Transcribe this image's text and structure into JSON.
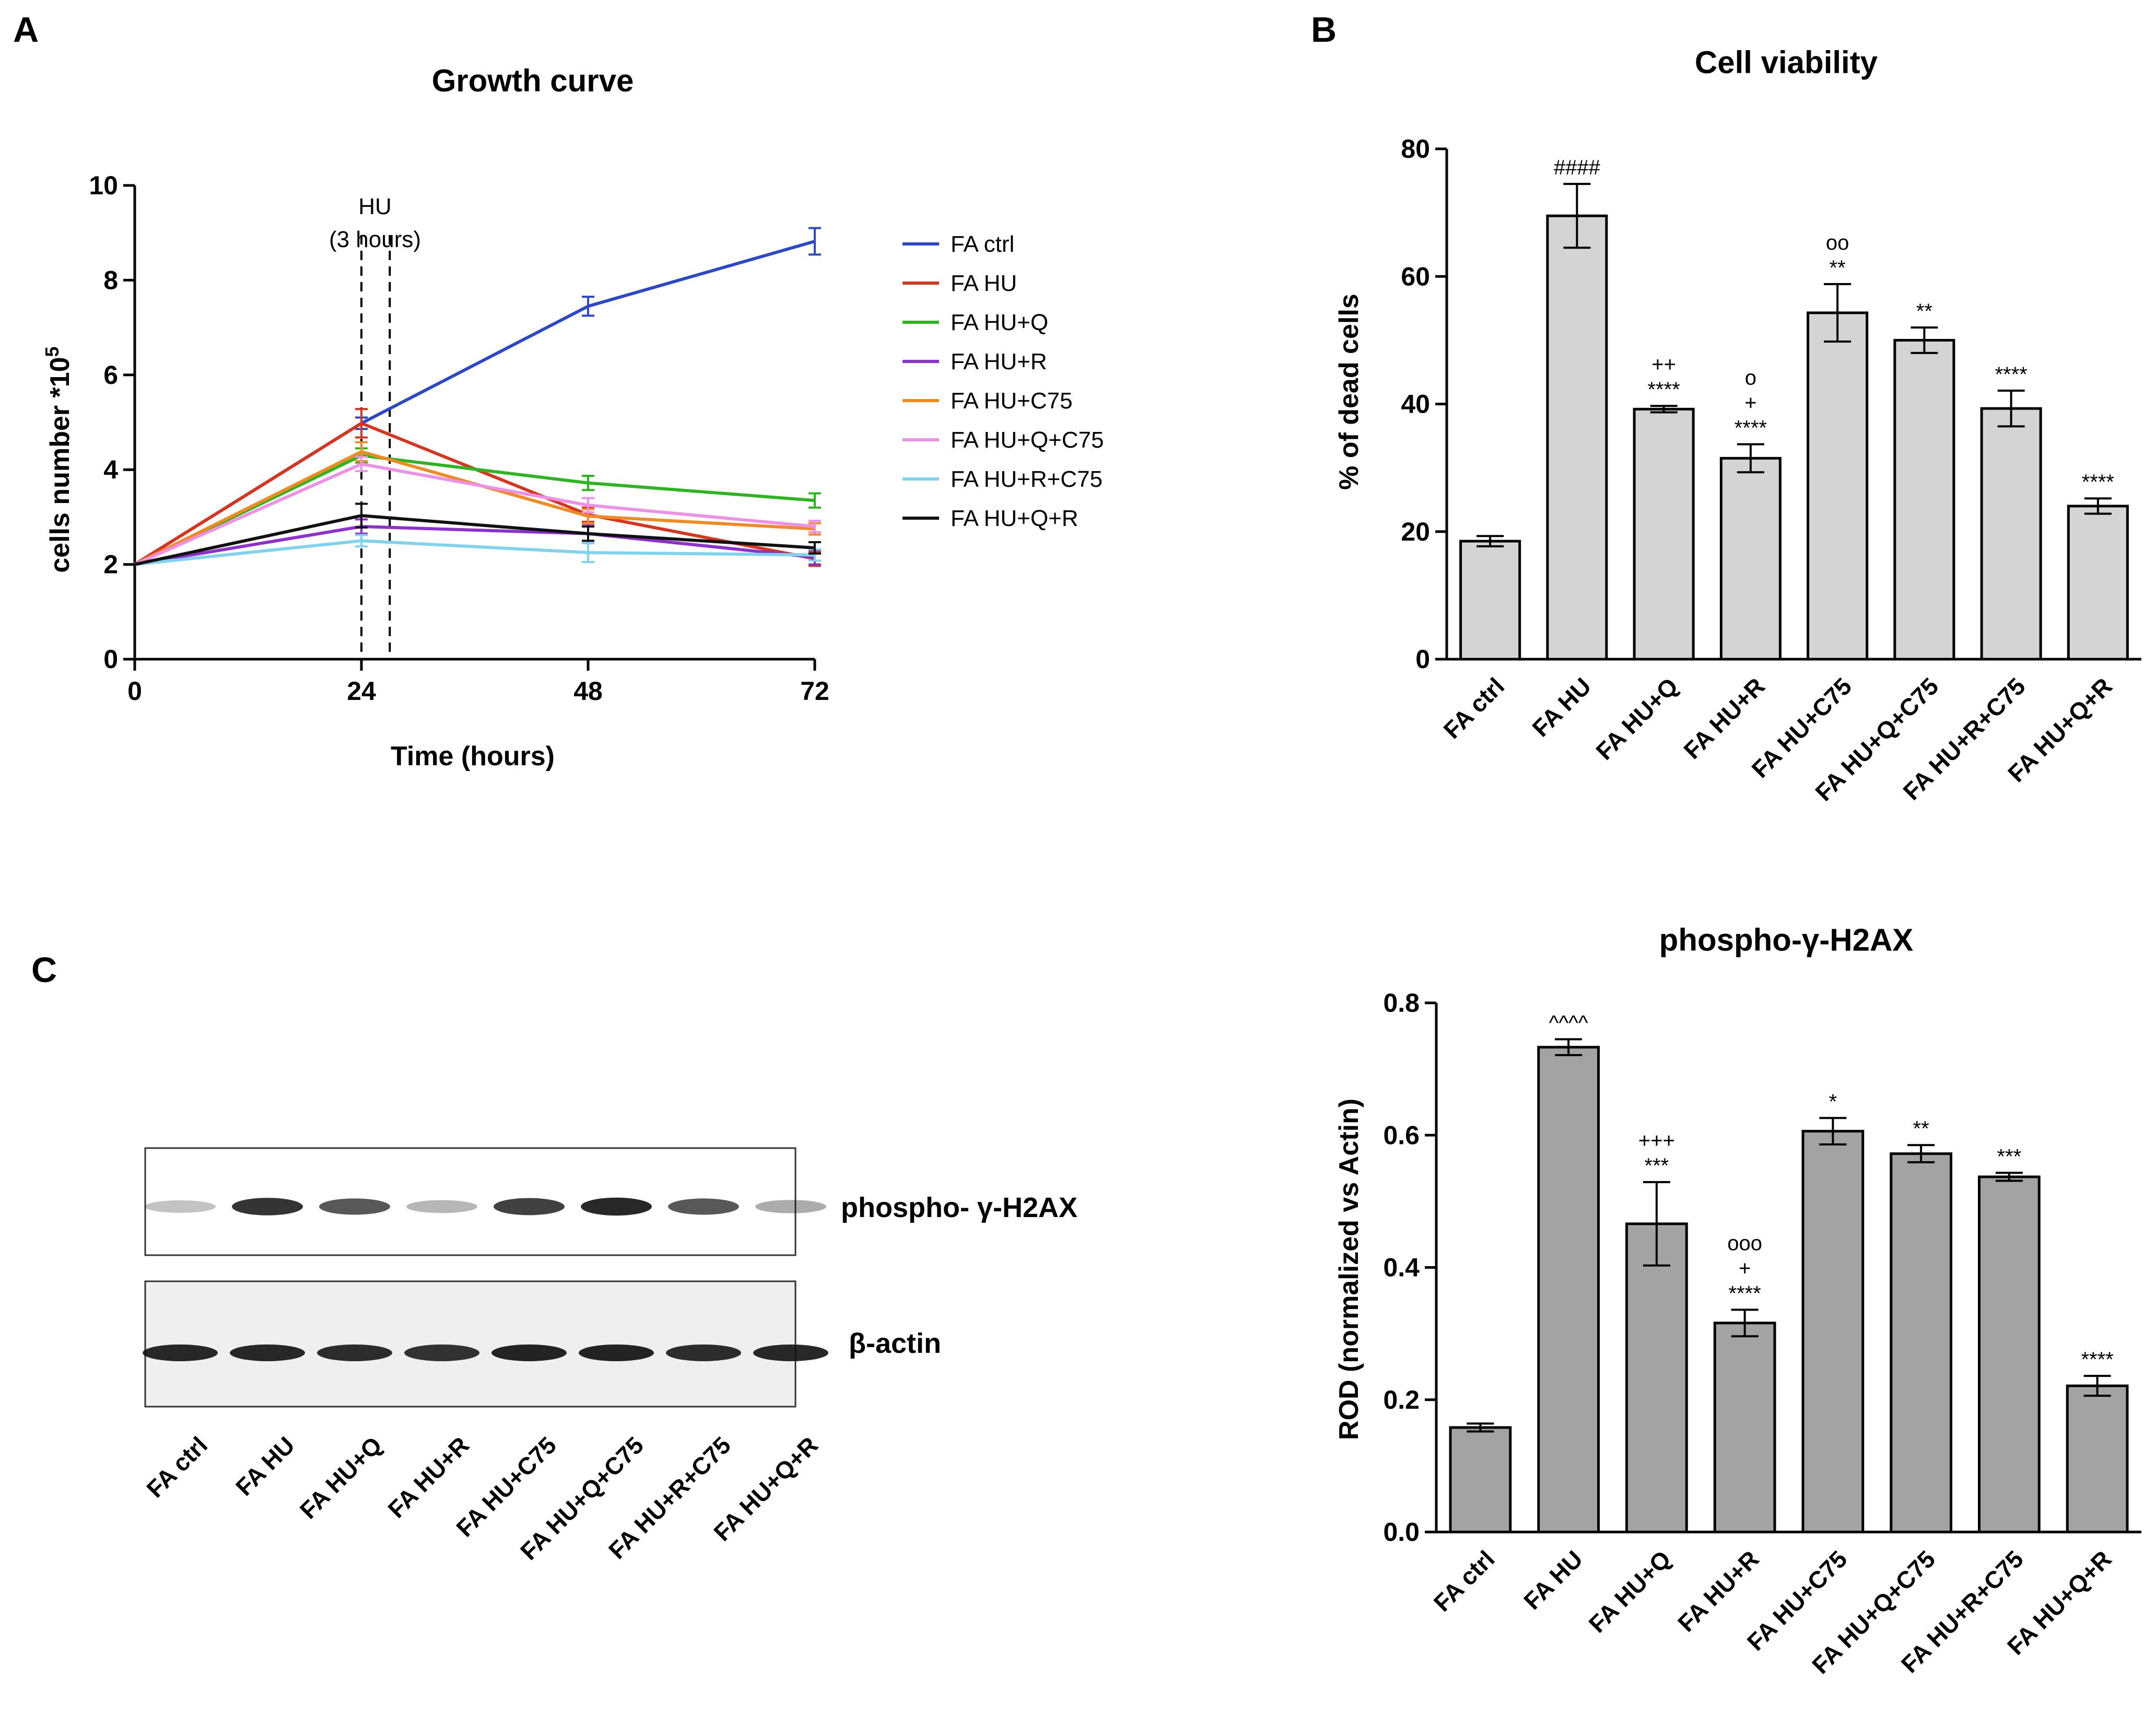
{
  "panels": {
    "a": "A",
    "b": "B",
    "c": "C"
  },
  "chart_data": [
    {
      "id": "growth",
      "type": "line",
      "title": "Growth curve",
      "xlabel": "Time (hours)",
      "ylabel_prefix": "cells number *10",
      "ylabel_sup": "5",
      "x": [
        0,
        24,
        48,
        72
      ],
      "xticks": [
        "0",
        "24",
        "48",
        "72"
      ],
      "xlim": [
        0,
        72
      ],
      "ylim": [
        0,
        10
      ],
      "yticks": [
        "0",
        "2",
        "4",
        "6",
        "8",
        "10"
      ],
      "annotation": {
        "line1": "HU",
        "line2": "(3 hours)",
        "x_start": 24,
        "x_end": 27
      },
      "series": [
        {
          "name": "FA ctrl",
          "color": "#2a48c9",
          "values": [
            2.0,
            4.98,
            7.45,
            8.82
          ],
          "errors": [
            0.05,
            0.12,
            0.2,
            0.28
          ]
        },
        {
          "name": "FA HU",
          "color": "#d8341e",
          "values": [
            2.0,
            4.98,
            3.05,
            2.12
          ],
          "errors": [
            0.05,
            0.3,
            0.15,
            0.15
          ]
        },
        {
          "name": "FA HU+Q",
          "color": "#2cb51f",
          "values": [
            2.0,
            4.3,
            3.72,
            3.35
          ],
          "errors": [
            0.05,
            0.15,
            0.15,
            0.15
          ]
        },
        {
          "name": "FA HU+R",
          "color": "#8e2fcf",
          "values": [
            2.0,
            2.8,
            2.65,
            2.15
          ],
          "errors": [
            0.05,
            0.15,
            0.2,
            0.15
          ]
        },
        {
          "name": "FA HU+C75",
          "color": "#f08a22",
          "values": [
            2.0,
            4.38,
            3.02,
            2.75
          ],
          "errors": [
            0.05,
            0.2,
            0.15,
            0.12
          ]
        },
        {
          "name": "FA HU+Q+C75",
          "color": "#ee8fe8",
          "values": [
            2.0,
            4.12,
            3.25,
            2.8
          ],
          "errors": [
            0.05,
            0.15,
            0.15,
            0.12
          ]
        },
        {
          "name": "FA HU+R+C75",
          "color": "#7fd3ee",
          "values": [
            2.0,
            2.5,
            2.25,
            2.2
          ],
          "errors": [
            0.05,
            0.12,
            0.2,
            0.12
          ]
        },
        {
          "name": "FA HU+Q+R",
          "color": "#111111",
          "values": [
            2.0,
            3.03,
            2.65,
            2.35
          ],
          "errors": [
            0.05,
            0.25,
            0.15,
            0.12
          ]
        }
      ]
    },
    {
      "id": "viability",
      "type": "bar",
      "title": "Cell viability",
      "ylabel": "% of dead cells",
      "categories": [
        "FA ctrl",
        "FA HU",
        "FA HU+Q",
        "FA HU+R",
        "FA HU+C75",
        "FA HU+Q+C75",
        "FA HU+R+C75",
        "FA HU+Q+R"
      ],
      "values": [
        18.5,
        69.5,
        39.2,
        31.5,
        54.3,
        50.0,
        39.3,
        24.0
      ],
      "errors": [
        0.8,
        5.0,
        0.5,
        2.2,
        4.5,
        2.0,
        2.8,
        1.2
      ],
      "ylim": [
        0,
        80
      ],
      "yticks": [
        "0",
        "20",
        "40",
        "60",
        "80"
      ],
      "bar_color": "#d4d4d4",
      "annotations": [
        [],
        [
          "####"
        ],
        [
          "++",
          "****"
        ],
        [
          "o",
          "+",
          "****"
        ],
        [
          "oo",
          "**"
        ],
        [
          "**"
        ],
        [
          "****"
        ],
        [
          "****"
        ]
      ]
    },
    {
      "id": "h2ax",
      "type": "bar",
      "title": "phospho-γ-H2AX",
      "ylabel": "ROD (normalized vs Actin)",
      "categories": [
        "FA ctrl",
        "FA HU",
        "FA HU+Q",
        "FA HU+R",
        "FA HU+C75",
        "FA HU+Q+C75",
        "FA HU+R+C75",
        "FA HU+Q+R"
      ],
      "values": [
        0.158,
        0.733,
        0.466,
        0.316,
        0.606,
        0.572,
        0.537,
        0.221
      ],
      "errors": [
        0.006,
        0.012,
        0.063,
        0.02,
        0.02,
        0.013,
        0.006,
        0.015
      ],
      "ylim": [
        0,
        0.8
      ],
      "yticks": [
        "0.0",
        "0.2",
        "0.4",
        "0.6",
        "0.8"
      ],
      "bar_color": "#a3a3a3",
      "annotations": [
        [],
        [
          "^^^^"
        ],
        [
          "+++",
          "***"
        ],
        [
          "ooo",
          "+",
          "****"
        ],
        [
          "*"
        ],
        [
          "**"
        ],
        [
          "***"
        ],
        [
          "****"
        ]
      ]
    }
  ],
  "blot": {
    "band1_label": "phospho- γ-H2AX",
    "band2_label": "β-actin",
    "lanes": [
      "FA ctrl",
      "FA HU",
      "FA HU+Q",
      "FA HU+R",
      "FA HU+C75",
      "FA HU+Q+C75",
      "FA HU+R+C75",
      "FA HU+Q+R"
    ],
    "band1_intensity": [
      0.25,
      0.85,
      0.7,
      0.3,
      0.8,
      0.9,
      0.7,
      0.35
    ],
    "band2_intensity": [
      0.9,
      0.9,
      0.88,
      0.85,
      0.92,
      0.92,
      0.88,
      0.9
    ]
  }
}
